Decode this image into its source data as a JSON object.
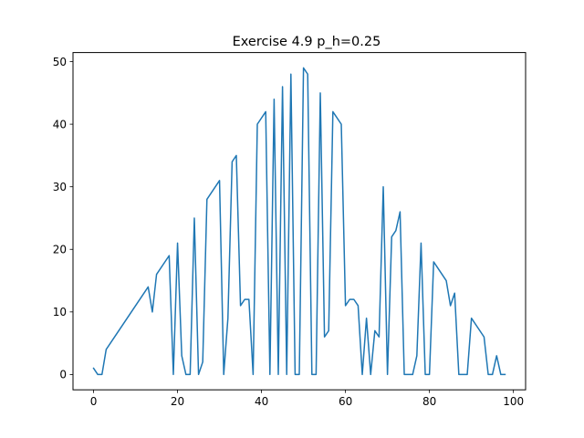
{
  "chart_data": {
    "type": "line",
    "title": "Exercise 4.9 p_h=0.25",
    "xlabel": "",
    "ylabel": "",
    "xlim": [
      -4.9,
      102.9
    ],
    "ylim": [
      -2.45,
      51.45
    ],
    "xticks": [
      0,
      20,
      40,
      60,
      80,
      100
    ],
    "yticks": [
      0,
      10,
      20,
      30,
      40,
      50
    ],
    "grid": false,
    "line_color": "#1f77b4",
    "series": [
      {
        "x": [
          0,
          1,
          2,
          3,
          13,
          14,
          15,
          18,
          19,
          20,
          21,
          22,
          23,
          24,
          25,
          26,
          27,
          30,
          31,
          32,
          33,
          34,
          35,
          36,
          37,
          38,
          39,
          41,
          42,
          43,
          44,
          45,
          46,
          47,
          48,
          49,
          50,
          51,
          52,
          53,
          54,
          55,
          56,
          57,
          59,
          60,
          61,
          62,
          63,
          64,
          65,
          66,
          67,
          68,
          69,
          70,
          71,
          72,
          73,
          74,
          75,
          76,
          77,
          78,
          79,
          80,
          81,
          84,
          85,
          86,
          87,
          88,
          89,
          90,
          93,
          94,
          95,
          96,
          97,
          98
        ],
        "y": [
          1,
          0,
          0,
          4,
          14,
          10,
          16,
          19,
          0,
          21,
          3,
          0,
          0,
          25,
          0,
          2,
          28,
          31,
          0,
          9,
          34,
          35,
          11,
          12,
          12,
          0,
          40,
          42,
          0,
          44,
          0,
          46,
          0,
          48,
          0,
          0,
          49,
          48,
          0,
          0,
          45,
          6,
          7,
          42,
          40,
          11,
          12,
          12,
          11,
          0,
          9,
          0,
          7,
          6,
          30,
          0,
          22,
          23,
          26,
          0,
          0,
          0,
          3,
          21,
          0,
          0,
          18,
          15,
          11,
          13,
          0,
          0,
          0,
          9,
          6,
          0,
          0,
          3,
          0,
          0
        ]
      }
    ]
  }
}
